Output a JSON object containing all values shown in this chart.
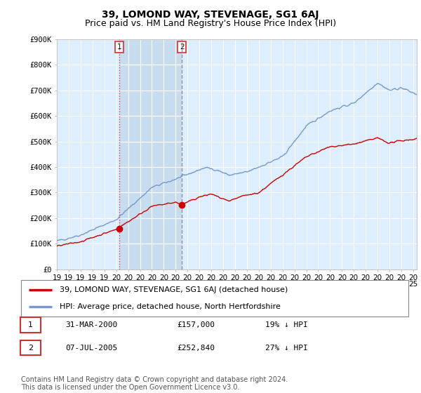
{
  "title": "39, LOMOND WAY, STEVENAGE, SG1 6AJ",
  "subtitle": "Price paid vs. HM Land Registry's House Price Index (HPI)",
  "ylabel_ticks": [
    "£0",
    "£100K",
    "£200K",
    "£300K",
    "£400K",
    "£500K",
    "£600K",
    "£700K",
    "£800K",
    "£900K"
  ],
  "ylim": [
    0,
    900000
  ],
  "xlim_start": 1995.0,
  "xlim_end": 2025.3,
  "background_color": "#ffffff",
  "plot_bg_color": "#ddeeff",
  "shade_color": "#c8dcf0",
  "grid_color": "#aaaacc",
  "red_line_color": "#cc0000",
  "blue_line_color": "#7799cc",
  "sale1": {
    "label": "1",
    "date": "31-MAR-2000",
    "price": 157000,
    "year": 2000.25,
    "pct": "19%",
    "direction": "↓"
  },
  "sale2": {
    "label": "2",
    "date": "07-JUL-2005",
    "price": 252840,
    "year": 2005.52,
    "pct": "27%",
    "direction": "↓"
  },
  "legend_line1": "39, LOMOND WAY, STEVENAGE, SG1 6AJ (detached house)",
  "legend_line2": "HPI: Average price, detached house, North Hertfordshire",
  "footnote": "Contains HM Land Registry data © Crown copyright and database right 2024.\nThis data is licensed under the Open Government Licence v3.0.",
  "title_fontsize": 10,
  "subtitle_fontsize": 9,
  "tick_fontsize": 7.5,
  "legend_fontsize": 8,
  "table_fontsize": 8,
  "footnote_fontsize": 7
}
